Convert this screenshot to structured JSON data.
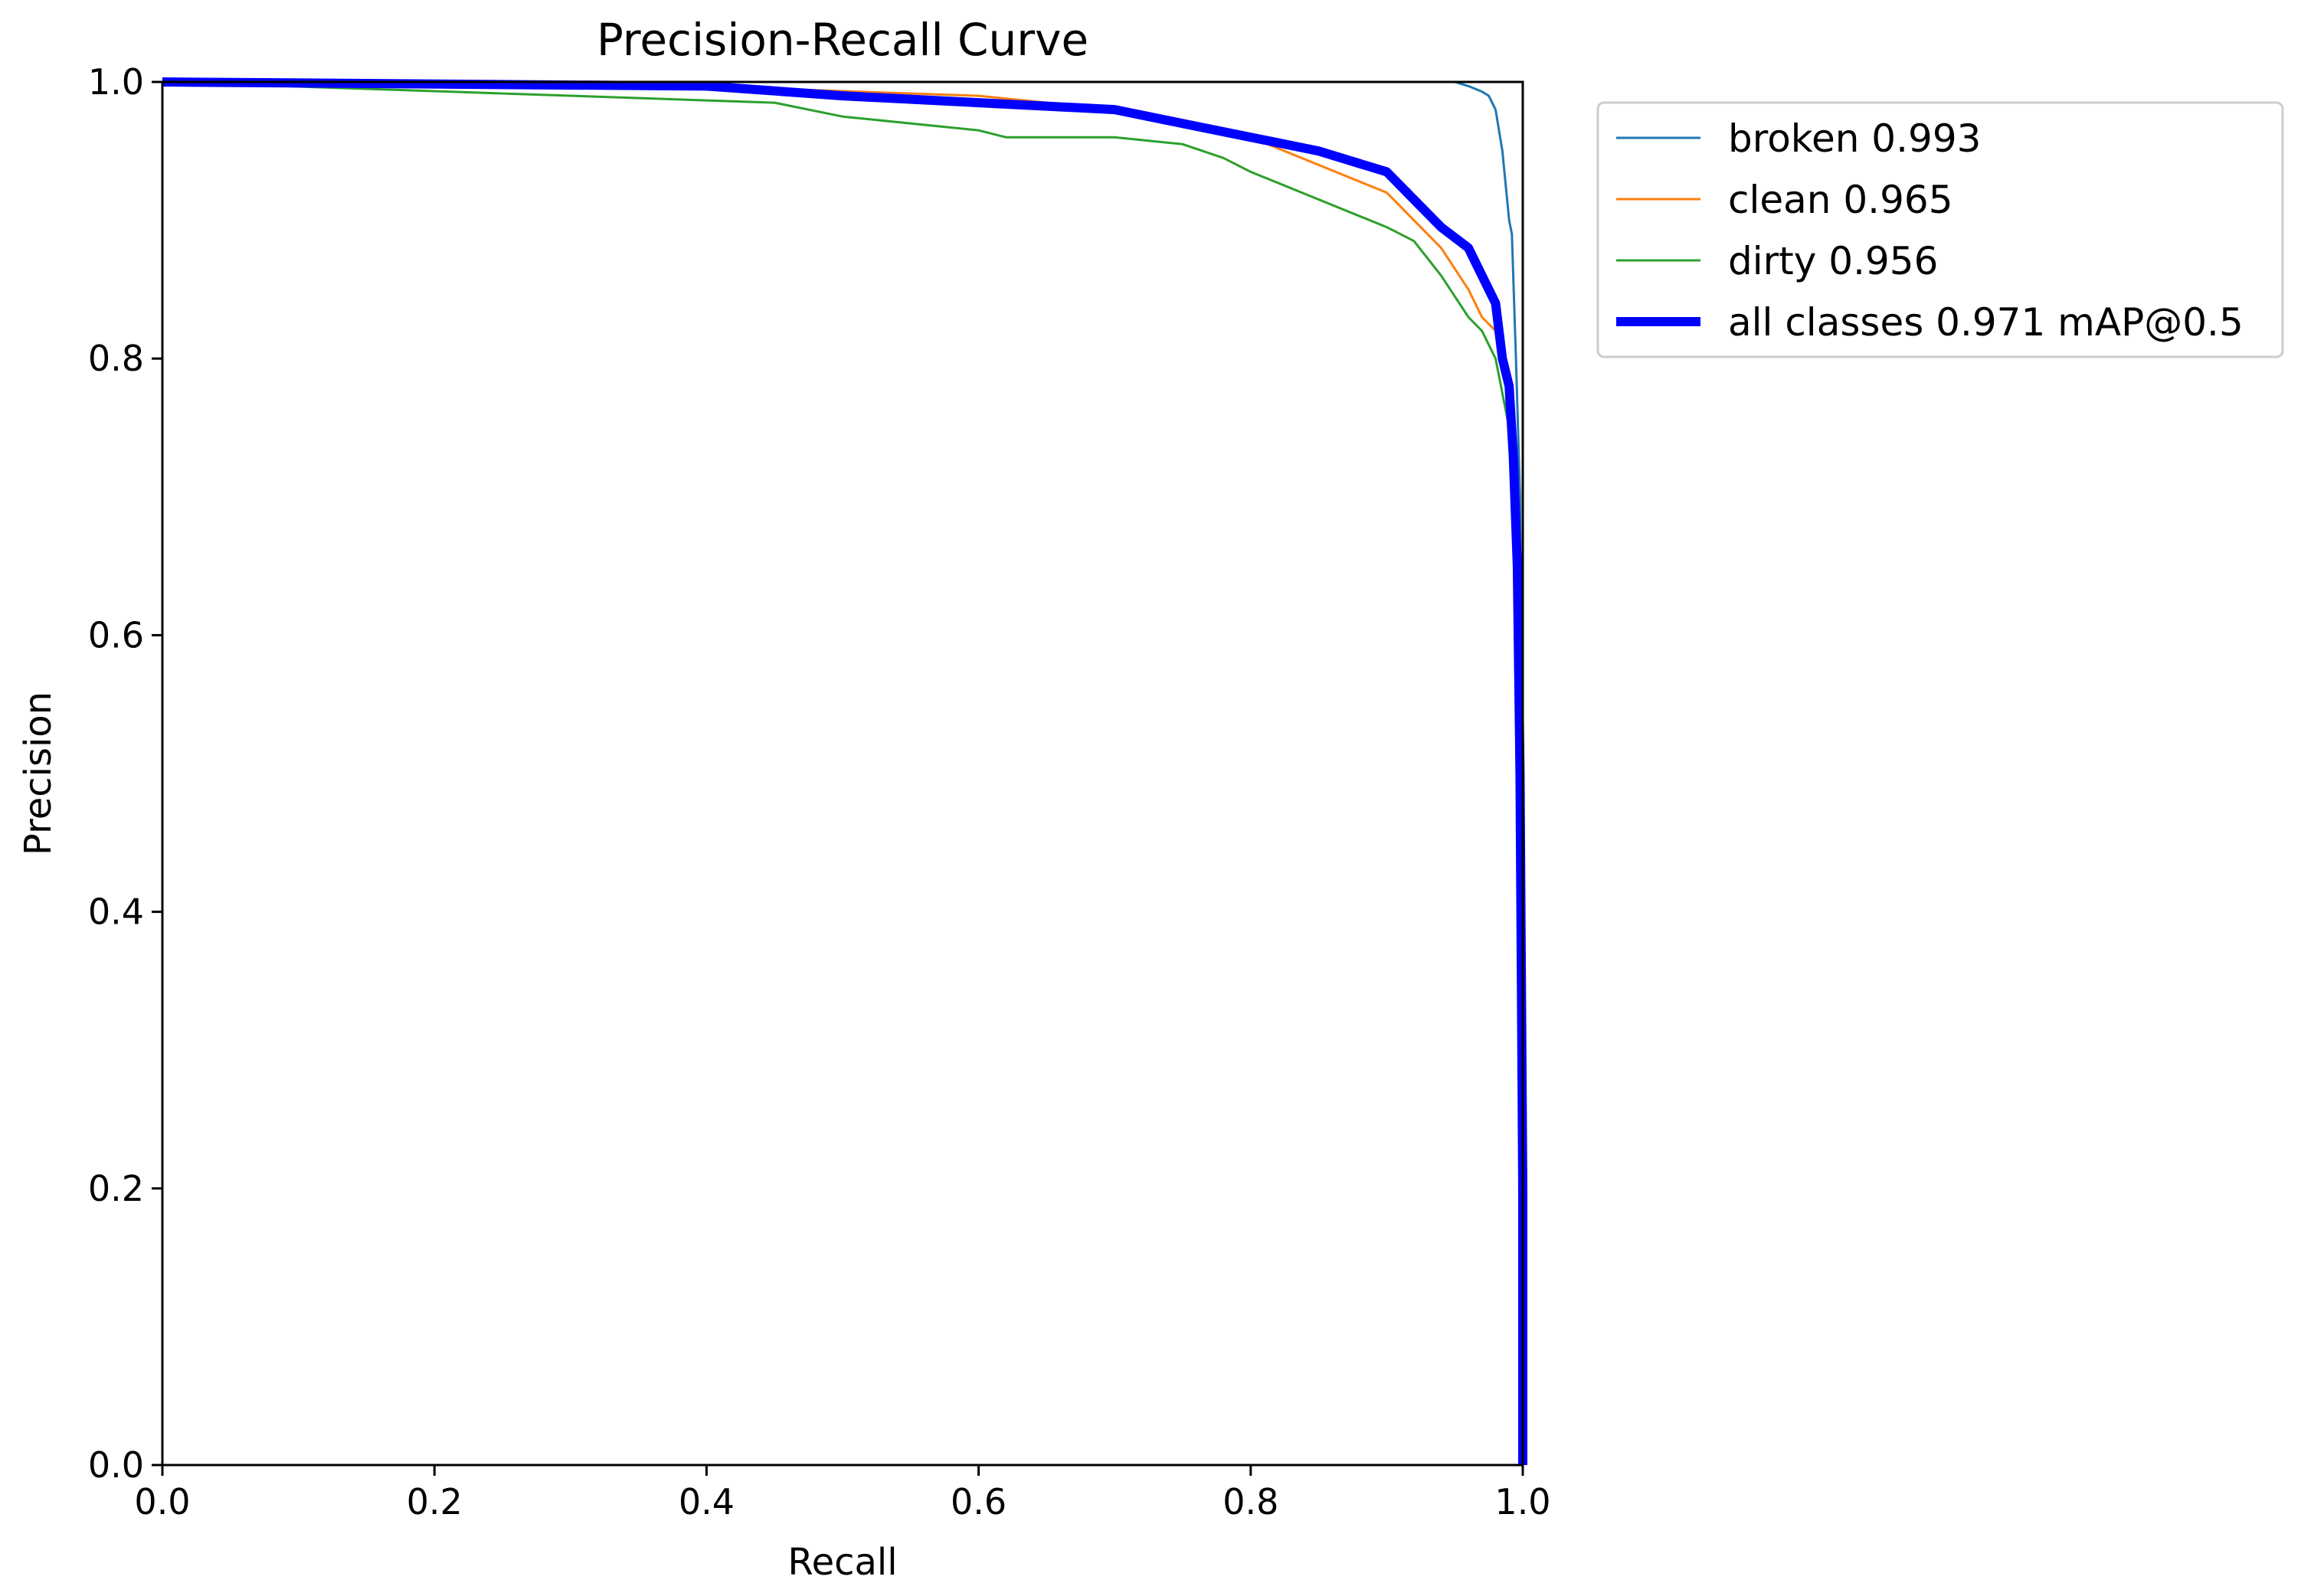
{
  "chart_data": {
    "type": "line",
    "title": "Precision-Recall Curve",
    "xlabel": "Recall",
    "ylabel": "Precision",
    "xlim": [
      0,
      1
    ],
    "ylim": [
      0,
      1
    ],
    "xticks": [
      "0.0",
      "0.2",
      "0.4",
      "0.6",
      "0.8",
      "1.0"
    ],
    "yticks": [
      "0.0",
      "0.2",
      "0.4",
      "0.6",
      "0.8",
      "1.0"
    ],
    "grid": false,
    "legend_position": "outside-top-right",
    "series": [
      {
        "name": "broken 0.993",
        "color": "#1f77b4",
        "x": [
          0,
          0.5,
          0.95,
          0.96,
          0.97,
          0.975,
          0.98,
          0.985,
          0.99,
          0.992,
          0.995,
          0.998,
          1.0,
          1.0
        ],
        "y": [
          1.0,
          1.0,
          1.0,
          0.997,
          0.993,
          0.99,
          0.98,
          0.95,
          0.9,
          0.89,
          0.8,
          0.7,
          0.3,
          0.0
        ]
      },
      {
        "name": "clean 0.965",
        "color": "#ff7f0e",
        "x": [
          0,
          0.45,
          0.6,
          0.7,
          0.75,
          0.8,
          0.85,
          0.9,
          0.92,
          0.94,
          0.96,
          0.97,
          0.98,
          0.99,
          0.993,
          0.996,
          1.0,
          1.0
        ],
        "y": [
          1.0,
          0.995,
          0.99,
          0.98,
          0.97,
          0.96,
          0.94,
          0.92,
          0.9,
          0.88,
          0.85,
          0.83,
          0.82,
          0.78,
          0.72,
          0.68,
          0.3,
          0.0
        ]
      },
      {
        "name": "dirty 0.956",
        "color": "#2ca02c",
        "x": [
          0,
          0.45,
          0.5,
          0.6,
          0.62,
          0.7,
          0.75,
          0.78,
          0.8,
          0.85,
          0.9,
          0.92,
          0.94,
          0.96,
          0.97,
          0.98,
          0.99,
          0.995,
          1.0,
          1.0
        ],
        "y": [
          1.0,
          0.985,
          0.975,
          0.965,
          0.96,
          0.96,
          0.955,
          0.945,
          0.935,
          0.915,
          0.895,
          0.885,
          0.86,
          0.83,
          0.82,
          0.8,
          0.75,
          0.7,
          0.3,
          0.0
        ]
      },
      {
        "name": "all classes 0.971 mAP@0.5",
        "color": "#0000ff",
        "x": [
          0,
          0.4,
          0.5,
          0.6,
          0.7,
          0.75,
          0.8,
          0.85,
          0.9,
          0.92,
          0.94,
          0.96,
          0.97,
          0.98,
          0.985,
          0.99,
          0.993,
          0.996,
          0.998,
          1.0,
          1.0
        ],
        "y": [
          1.0,
          0.997,
          0.99,
          0.985,
          0.98,
          0.97,
          0.96,
          0.95,
          0.935,
          0.915,
          0.895,
          0.88,
          0.86,
          0.84,
          0.8,
          0.78,
          0.73,
          0.65,
          0.5,
          0.2,
          0.0
        ]
      }
    ]
  }
}
